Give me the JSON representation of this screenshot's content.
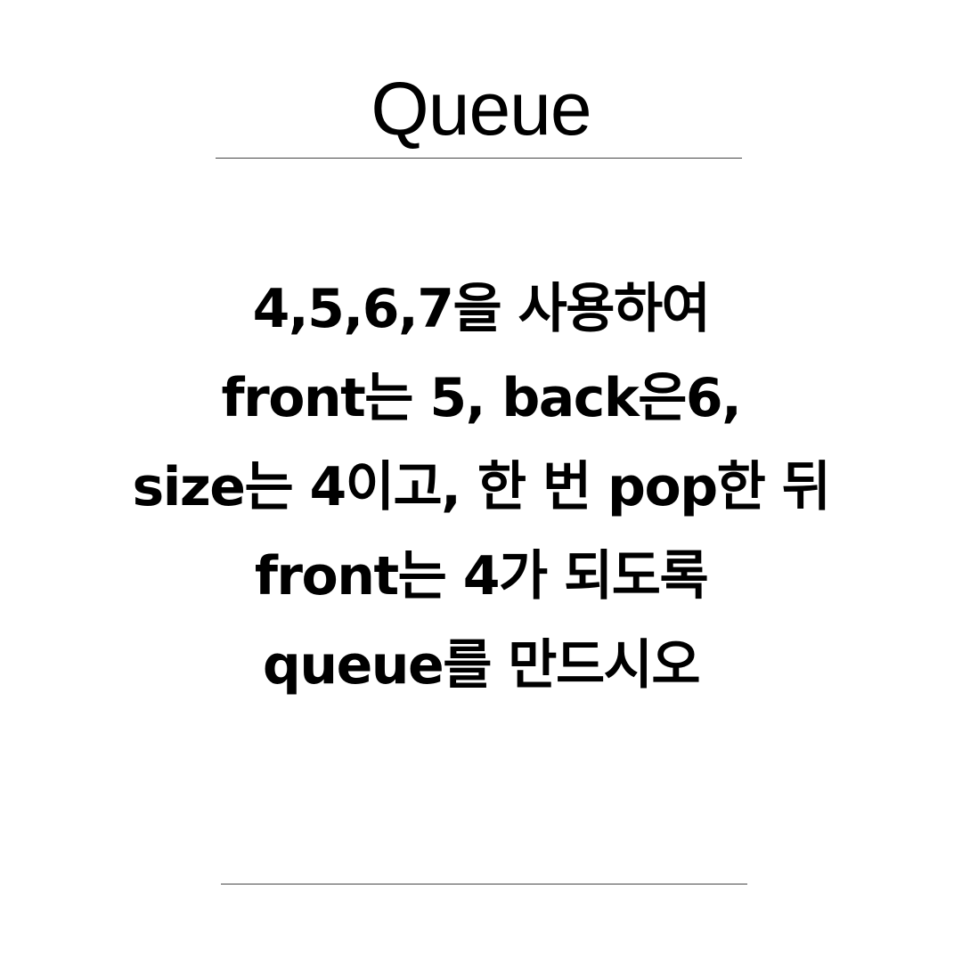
{
  "title": "Queue",
  "body_lines": [
    "4,5,6,7을 사용하여",
    "front는 5, back은6,",
    "size는 4이고, 한 번 pop한 뒤",
    "front는 4가 되도록",
    "queue를 만드시오"
  ]
}
